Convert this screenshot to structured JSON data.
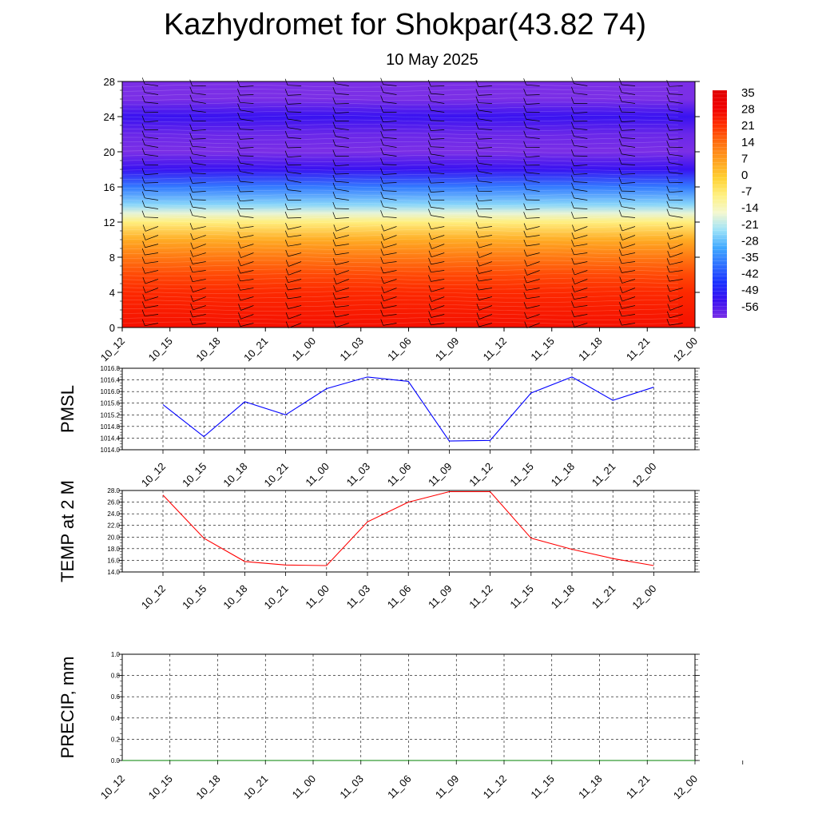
{
  "page": {
    "title": "Kazhydromet for Shokpar(43.82 74)",
    "subtitle": "10 May 2025"
  },
  "chart_data": [
    {
      "type": "heatmap",
      "name": "temperature-wind-profile",
      "x_tick_labels": [
        "10_12",
        "10_15",
        "10_18",
        "10_21",
        "11_00",
        "11_03",
        "11_06",
        "11_09",
        "11_12",
        "11_15",
        "11_18",
        "11_21",
        "12_00"
      ],
      "y_ticks": [
        0,
        4,
        8,
        12,
        16,
        20,
        24,
        28
      ],
      "ylim": [
        0,
        28
      ],
      "colorbar_labels": [
        "35",
        "28",
        "21",
        "14",
        "7",
        "0",
        "-7",
        "-14",
        "-21",
        "-28",
        "-35",
        "-42",
        "-49",
        "-56"
      ],
      "colorbar_range": [
        -60,
        38
      ],
      "level_profile": [
        {
          "level": 0,
          "value": 28
        },
        {
          "level": 2,
          "value": 26
        },
        {
          "level": 4,
          "value": 24
        },
        {
          "level": 6,
          "value": 20
        },
        {
          "level": 8,
          "value": 14
        },
        {
          "level": 10,
          "value": 6
        },
        {
          "level": 12,
          "value": -7
        },
        {
          "level": 13,
          "value": -16
        },
        {
          "level": 14,
          "value": -24
        },
        {
          "level": 16,
          "value": -36
        },
        {
          "level": 18,
          "value": -52
        },
        {
          "level": 20,
          "value": -60
        },
        {
          "level": 22,
          "value": -58
        },
        {
          "level": 24,
          "value": -52
        },
        {
          "level": 26,
          "value": -60
        },
        {
          "level": 28,
          "value": -60
        }
      ],
      "colors": {
        "stops": [
          "#7b2fe6",
          "#3a10f0",
          "#1a30ff",
          "#3070ff",
          "#40a8ff",
          "#9ce2f8",
          "#f4f8d0",
          "#fff080",
          "#ffd030",
          "#ffa020",
          "#ff7010",
          "#ff3000",
          "#f00000",
          "#e00000"
        ]
      }
    },
    {
      "type": "line",
      "name": "pmsl",
      "ylabel": "PMSL",
      "x_tick_labels": [
        "10_12",
        "10_15",
        "10_18",
        "10_21",
        "11_00",
        "11_03",
        "11_06",
        "11_09",
        "11_12",
        "11_15",
        "11_18",
        "11_21",
        "12_00"
      ],
      "y_ticks": [
        "1014.0",
        "1014.4",
        "1014.8",
        "1015.2",
        "1015.6",
        "1016.0",
        "1016.4",
        "1016.8"
      ],
      "ylim": [
        1014.0,
        1016.8
      ],
      "values": [
        1015.55,
        1014.45,
        1015.65,
        1015.2,
        1016.1,
        1016.5,
        1016.35,
        1014.3,
        1014.32,
        1015.95,
        1016.5,
        1015.7,
        1016.15
      ],
      "color": "#0000ff"
    },
    {
      "type": "line",
      "name": "temp2m",
      "ylabel": "TEMP at 2 M",
      "x_tick_labels": [
        "10_12",
        "10_15",
        "10_18",
        "10_21",
        "11_00",
        "11_03",
        "11_06",
        "11_09",
        "11_12",
        "11_15",
        "11_18",
        "11_21",
        "12_00"
      ],
      "y_ticks": [
        "14.0",
        "16.0",
        "18.0",
        "20.0",
        "22.0",
        "24.0",
        "26.0",
        "28.0"
      ],
      "ylim": [
        14.0,
        28.0
      ],
      "values": [
        27.2,
        19.8,
        15.8,
        15.2,
        15.1,
        22.6,
        26.0,
        27.8,
        27.8,
        19.8,
        17.9,
        16.3,
        15.1
      ],
      "color": "#ff0000"
    },
    {
      "type": "line",
      "name": "precip",
      "ylabel": "PRECIP, mm",
      "x_tick_labels": [
        "10_12",
        "10_15",
        "10_18",
        "10_21",
        "11_00",
        "11_03",
        "11_06",
        "11_09",
        "11_12",
        "11_15",
        "11_18",
        "11_21",
        "12_00"
      ],
      "y_ticks": [
        "0.0",
        "0.2",
        "0.4",
        "0.6",
        "0.8",
        "1.0"
      ],
      "ylim": [
        0,
        1
      ],
      "values": [
        0,
        0,
        0,
        0,
        0,
        0,
        0,
        0,
        0,
        0,
        0,
        0,
        0
      ],
      "color": "#008000"
    }
  ]
}
